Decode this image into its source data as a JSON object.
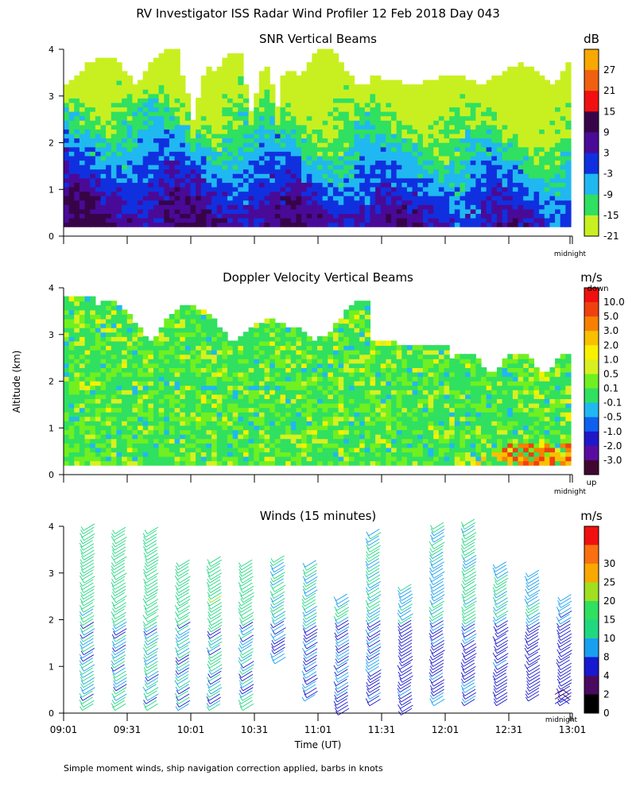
{
  "page_title": "RV Investigator ISS Radar Wind Profiler  12 Feb 2018 Day 043",
  "ylabel": "Altitude (km)",
  "xlabel": "Time (UT)",
  "footnote": "Simple moment winds, ship navigation correction applied, barbs in knots",
  "midnight_label": "midnight",
  "chart_data": [
    {
      "type": "heatmap",
      "title": "SNR Vertical Beams",
      "ylim": [
        0,
        4
      ],
      "yticks": [
        "0",
        "1",
        "2",
        "3",
        "4"
      ],
      "colorbar": {
        "unit": "dB",
        "colors": [
          "#c8f020",
          "#30e060",
          "#20b8f0",
          "#1030e0",
          "#4a0a98",
          "#380448",
          "#f01010",
          "#f06010",
          "#f8a800"
        ],
        "labels": [
          "-21",
          "-15",
          "-9",
          "-3",
          "3",
          "9",
          "15",
          "21",
          "27"
        ]
      }
    },
    {
      "type": "heatmap",
      "title": "Doppler Velocity Vertical Beams",
      "ylim": [
        0,
        4
      ],
      "yticks": [
        "0",
        "1",
        "2",
        "3",
        "4"
      ],
      "colorbar": {
        "unit": "m/s",
        "top_label": "down",
        "bottom_label": "up",
        "colors": [
          "#400830",
          "#5a0ca0",
          "#2018c8",
          "#1060f0",
          "#20b8f0",
          "#30e060",
          "#70f020",
          "#d8f020",
          "#f8f000",
          "#f8c000",
          "#f88000",
          "#f04010",
          "#f01010"
        ],
        "labels": [
          "10.0",
          "5.0",
          "3.0",
          "2.0",
          "1.0",
          "0.5",
          "0.1",
          "-0.1",
          "-0.5",
          "-1.0",
          "-2.0",
          "-3.0"
        ]
      }
    },
    {
      "type": "scatter",
      "title": "Winds (15 minutes)",
      "ylim": [
        0,
        4
      ],
      "yticks": [
        "0",
        "1",
        "2",
        "3",
        "4"
      ],
      "x_tick_labels": [
        "09:01",
        "09:31",
        "10:01",
        "10:31",
        "11:01",
        "11:31",
        "12:01",
        "12:31",
        "13:01"
      ],
      "profiles": [
        {
          "time": "09:16",
          "top_km": 4.1,
          "bottom_km": 0.2,
          "speed_kt": 17
        },
        {
          "time": "09:31",
          "top_km": 4.0,
          "bottom_km": 0.2,
          "speed_kt": 18
        },
        {
          "time": "09:46",
          "top_km": 4.0,
          "bottom_km": 0.2,
          "speed_kt": 18
        },
        {
          "time": "10:01",
          "top_km": 3.3,
          "bottom_km": 0.2,
          "speed_kt": 17
        },
        {
          "time": "10:16",
          "top_km": 3.4,
          "bottom_km": 0.2,
          "speed_kt": 18
        },
        {
          "time": "10:31",
          "top_km": 3.3,
          "bottom_km": 0.2,
          "speed_kt": 17
        },
        {
          "time": "10:46",
          "top_km": 3.4,
          "bottom_km": 1.2,
          "speed_kt": 15
        },
        {
          "time": "11:01",
          "top_km": 3.3,
          "bottom_km": 0.4,
          "speed_kt": 14
        },
        {
          "time": "11:16",
          "top_km": 2.6,
          "bottom_km": 0.1,
          "speed_kt": 13
        },
        {
          "time": "11:31",
          "top_km": 4.0,
          "bottom_km": 0.3,
          "speed_kt": 14
        },
        {
          "time": "11:46",
          "top_km": 2.8,
          "bottom_km": 0.1,
          "speed_kt": 12
        },
        {
          "time": "12:01",
          "top_km": 4.1,
          "bottom_km": 0.3,
          "speed_kt": 13
        },
        {
          "time": "12:16",
          "top_km": 4.2,
          "bottom_km": 0.3,
          "speed_kt": 14
        },
        {
          "time": "12:31",
          "top_km": 3.3,
          "bottom_km": 0.3,
          "speed_kt": 13
        },
        {
          "time": "12:46",
          "top_km": 3.1,
          "bottom_km": 0.4,
          "speed_kt": 12
        },
        {
          "time": "13:01",
          "top_km": 2.6,
          "bottom_km": 0.3,
          "speed_kt": 11
        }
      ],
      "colorbar": {
        "unit": "m/s",
        "colors": [
          "#000000",
          "#4a0a60",
          "#1818d0",
          "#18a0f0",
          "#20d880",
          "#30e060",
          "#a0e020",
          "#f8a800",
          "#f87010",
          "#f01010"
        ],
        "labels": [
          "0",
          "2",
          "4",
          "8",
          "10",
          "15",
          "20",
          "25",
          "30"
        ]
      }
    }
  ]
}
